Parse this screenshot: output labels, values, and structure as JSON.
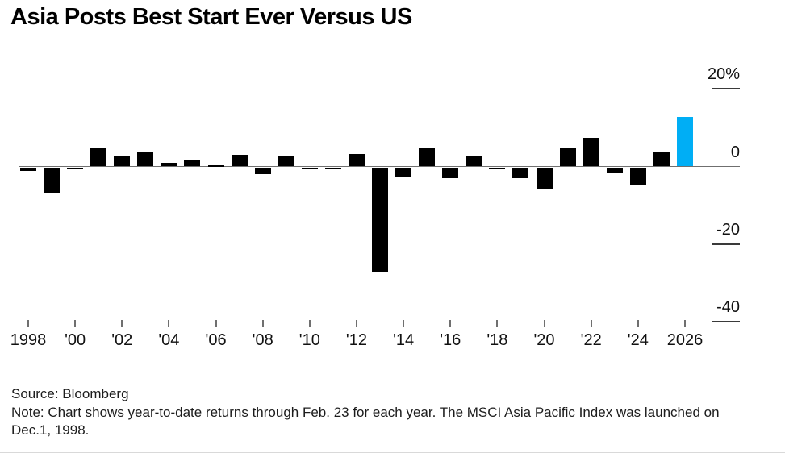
{
  "page": {
    "title": "Asia Posts Best Start Ever Versus US",
    "source": "Source: Bloomberg",
    "note": "Note: Chart shows year-to-date returns through Feb. 23 for each year. The MSCI Asia Pacific Index was launched on Dec.1, 1998."
  },
  "chart_data": {
    "type": "bar",
    "title": "Asia Posts Best Start Ever Versus US",
    "xlabel": "",
    "ylabel": "",
    "unit": "%",
    "ylim": [
      -45,
      22
    ],
    "grid": false,
    "x": [
      1998,
      1999,
      2000,
      2001,
      2002,
      2003,
      2004,
      2005,
      2006,
      2007,
      2008,
      2009,
      2010,
      2011,
      2012,
      2013,
      2014,
      2015,
      2016,
      2017,
      2018,
      2019,
      2020,
      2021,
      2022,
      2023,
      2024,
      2025,
      2026
    ],
    "values": [
      -1.0,
      -6.6,
      -0.3,
      4.7,
      2.5,
      3.7,
      1.0,
      1.6,
      0.3,
      3.1,
      -1.8,
      2.9,
      -0.3,
      -0.3,
      3.3,
      -27.0,
      -2.3,
      4.8,
      -2.9,
      2.6,
      -0.4,
      -2.8,
      -5.7,
      4.9,
      7.4,
      -1.6,
      -4.5,
      3.7,
      12.7
    ],
    "bar_color": "#000000",
    "highlight_color": "#00AEF5",
    "highlight_year": 2026,
    "axis_color": "#6f6f6f",
    "y_ticks": [
      {
        "value": 20,
        "label": "20%"
      },
      {
        "value": 0,
        "label": "0"
      },
      {
        "value": -20,
        "label": "-20"
      },
      {
        "value": -40,
        "label": "-40"
      }
    ],
    "y_tick_side": "right",
    "x_ticks": [
      {
        "year": 1998,
        "label": "1998"
      },
      {
        "year": 2000,
        "label": "'00"
      },
      {
        "year": 2002,
        "label": "'02"
      },
      {
        "year": 2004,
        "label": "'04"
      },
      {
        "year": 2006,
        "label": "'06"
      },
      {
        "year": 2008,
        "label": "'08"
      },
      {
        "year": 2010,
        "label": "'10"
      },
      {
        "year": 2012,
        "label": "'12"
      },
      {
        "year": 2014,
        "label": "'14"
      },
      {
        "year": 2016,
        "label": "'16"
      },
      {
        "year": 2018,
        "label": "'18"
      },
      {
        "year": 2020,
        "label": "'20"
      },
      {
        "year": 2022,
        "label": "'22"
      },
      {
        "year": 2024,
        "label": "'24"
      },
      {
        "year": 2026,
        "label": "2026"
      }
    ]
  }
}
